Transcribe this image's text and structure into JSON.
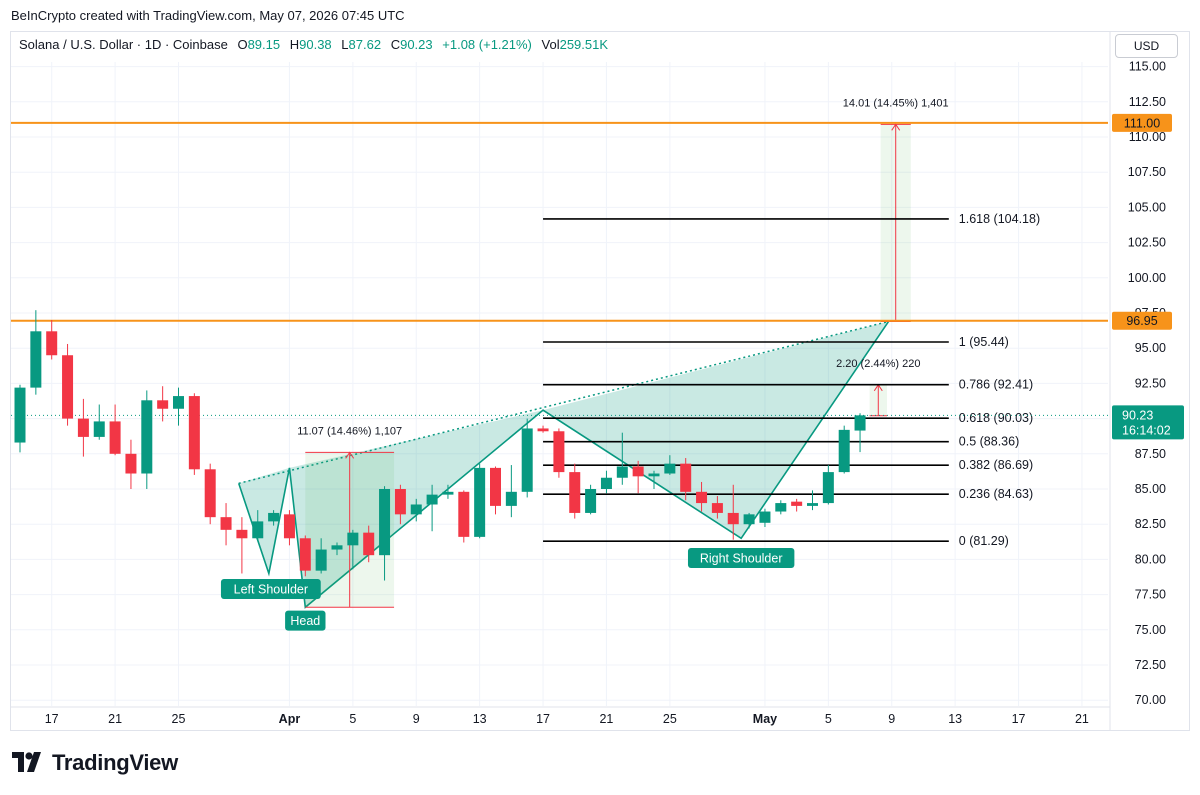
{
  "header": {
    "attribution": "BeInCrypto created with TradingView.com, May 07, 2026 07:45 UTC"
  },
  "legend": {
    "symbol": "Solana / U.S. Dollar · 1D · Coinbase",
    "open_label": "O",
    "open": "89.15",
    "high_label": "H",
    "high": "90.38",
    "low_label": "L",
    "low": "87.62",
    "close_label": "C",
    "close": "90.23",
    "change": "+1.08 (+1.21%)",
    "volume_label": "Vol",
    "volume": "259.51K"
  },
  "currency_button": "USD",
  "logo": {
    "text": "TradingView"
  },
  "colors": {
    "up": "#089981",
    "down": "#f23645",
    "orange": "#f7931a",
    "pattern_fill": "#089981",
    "fib_line": "#000000",
    "grid": "#f0f3fa"
  },
  "chart_data": {
    "type": "candlestick",
    "title": "Solana / U.S. Dollar · 1D · Coinbase",
    "ylim": [
      70,
      116
    ],
    "y_ticks": [
      "115.00",
      "112.50",
      "110.00",
      "107.50",
      "105.00",
      "102.50",
      "100.00",
      "97.50",
      "95.00",
      "92.50",
      "90.00",
      "87.50",
      "85.00",
      "82.50",
      "80.00",
      "77.50",
      "75.00",
      "72.50",
      "70.00"
    ],
    "y_tick_values": [
      115,
      112.5,
      110,
      107.5,
      105,
      102.5,
      100,
      97.5,
      95,
      92.5,
      90,
      87.5,
      85,
      82.5,
      80,
      77.5,
      75,
      72.5,
      70
    ],
    "x_ticks": [
      {
        "label": "17",
        "i": 2,
        "bold": false
      },
      {
        "label": "21",
        "i": 6,
        "bold": false
      },
      {
        "label": "25",
        "i": 10,
        "bold": false
      },
      {
        "label": "Apr",
        "i": 17,
        "bold": true
      },
      {
        "label": "5",
        "i": 21,
        "bold": false
      },
      {
        "label": "9",
        "i": 25,
        "bold": false
      },
      {
        "label": "13",
        "i": 29,
        "bold": false
      },
      {
        "label": "17",
        "i": 33,
        "bold": false
      },
      {
        "label": "21",
        "i": 37,
        "bold": false
      },
      {
        "label": "25",
        "i": 41,
        "bold": false
      },
      {
        "label": "May",
        "i": 47,
        "bold": true
      },
      {
        "label": "5",
        "i": 51,
        "bold": false
      },
      {
        "label": "9",
        "i": 55,
        "bold": false
      },
      {
        "label": "13",
        "i": 59,
        "bold": false
      },
      {
        "label": "17",
        "i": 63,
        "bold": false
      },
      {
        "label": "21",
        "i": 67,
        "bold": false
      }
    ],
    "candles": [
      {
        "o": 88.3,
        "h": 92.4,
        "l": 87.6,
        "c": 92.2
      },
      {
        "o": 92.2,
        "h": 97.7,
        "l": 91.7,
        "c": 96.2
      },
      {
        "o": 96.2,
        "h": 97.0,
        "l": 94.2,
        "c": 94.5
      },
      {
        "o": 94.5,
        "h": 95.3,
        "l": 89.5,
        "c": 90.0
      },
      {
        "o": 90.0,
        "h": 91.4,
        "l": 87.3,
        "c": 88.7
      },
      {
        "o": 88.7,
        "h": 91.0,
        "l": 88.5,
        "c": 89.8
      },
      {
        "o": 89.8,
        "h": 91.0,
        "l": 87.4,
        "c": 87.5
      },
      {
        "o": 87.5,
        "h": 88.5,
        "l": 85.0,
        "c": 86.1
      },
      {
        "o": 86.1,
        "h": 92.0,
        "l": 85.0,
        "c": 91.3
      },
      {
        "o": 91.3,
        "h": 92.3,
        "l": 89.8,
        "c": 90.7
      },
      {
        "o": 90.7,
        "h": 92.2,
        "l": 89.5,
        "c": 91.6
      },
      {
        "o": 91.6,
        "h": 91.8,
        "l": 86.0,
        "c": 86.4
      },
      {
        "o": 86.4,
        "h": 86.8,
        "l": 82.5,
        "c": 83.0
      },
      {
        "o": 83.0,
        "h": 84.0,
        "l": 81.0,
        "c": 82.1
      },
      {
        "o": 82.1,
        "h": 83.0,
        "l": 79.0,
        "c": 81.5
      },
      {
        "o": 81.5,
        "h": 83.5,
        "l": 81.3,
        "c": 82.7
      },
      {
        "o": 82.7,
        "h": 83.5,
        "l": 82.4,
        "c": 83.3
      },
      {
        "o": 83.2,
        "h": 83.5,
        "l": 81.0,
        "c": 81.5
      },
      {
        "o": 81.5,
        "h": 81.7,
        "l": 78.8,
        "c": 79.2
      },
      {
        "o": 79.2,
        "h": 81.5,
        "l": 79.0,
        "c": 80.7
      },
      {
        "o": 80.7,
        "h": 81.2,
        "l": 80.3,
        "c": 81.0
      },
      {
        "o": 81.0,
        "h": 82.1,
        "l": 79.3,
        "c": 81.9
      },
      {
        "o": 81.9,
        "h": 82.4,
        "l": 79.8,
        "c": 80.3
      },
      {
        "o": 80.3,
        "h": 85.2,
        "l": 78.5,
        "c": 85.0
      },
      {
        "o": 85.0,
        "h": 85.3,
        "l": 82.5,
        "c": 83.2
      },
      {
        "o": 83.2,
        "h": 84.3,
        "l": 82.7,
        "c": 83.9
      },
      {
        "o": 83.9,
        "h": 85.3,
        "l": 82.0,
        "c": 84.6
      },
      {
        "o": 84.6,
        "h": 85.3,
        "l": 84.3,
        "c": 84.8
      },
      {
        "o": 84.8,
        "h": 84.9,
        "l": 81.2,
        "c": 81.6
      },
      {
        "o": 81.6,
        "h": 86.8,
        "l": 81.5,
        "c": 86.5
      },
      {
        "o": 86.5,
        "h": 86.6,
        "l": 83.2,
        "c": 83.8
      },
      {
        "o": 83.8,
        "h": 86.7,
        "l": 83.0,
        "c": 84.8
      },
      {
        "o": 84.8,
        "h": 90.0,
        "l": 84.4,
        "c": 89.3
      },
      {
        "o": 89.3,
        "h": 89.5,
        "l": 89.0,
        "c": 89.1
      },
      {
        "o": 89.1,
        "h": 89.3,
        "l": 85.8,
        "c": 86.2
      },
      {
        "o": 86.2,
        "h": 86.8,
        "l": 82.9,
        "c": 83.3
      },
      {
        "o": 83.3,
        "h": 85.3,
        "l": 83.2,
        "c": 85.0
      },
      {
        "o": 85.0,
        "h": 86.3,
        "l": 84.7,
        "c": 85.8
      },
      {
        "o": 85.8,
        "h": 89.0,
        "l": 85.3,
        "c": 86.6
      },
      {
        "o": 86.6,
        "h": 87.0,
        "l": 84.7,
        "c": 85.9
      },
      {
        "o": 85.9,
        "h": 86.3,
        "l": 85.0,
        "c": 86.1
      },
      {
        "o": 86.1,
        "h": 87.4,
        "l": 86.0,
        "c": 86.8
      },
      {
        "o": 86.8,
        "h": 87.2,
        "l": 84.2,
        "c": 84.8
      },
      {
        "o": 84.8,
        "h": 85.5,
        "l": 83.4,
        "c": 84.0
      },
      {
        "o": 84.0,
        "h": 84.5,
        "l": 82.9,
        "c": 83.3
      },
      {
        "o": 83.3,
        "h": 85.3,
        "l": 81.4,
        "c": 82.5
      },
      {
        "o": 82.5,
        "h": 83.3,
        "l": 82.2,
        "c": 83.2
      },
      {
        "o": 82.6,
        "h": 83.6,
        "l": 82.3,
        "c": 83.4
      },
      {
        "o": 83.4,
        "h": 84.2,
        "l": 83.2,
        "c": 84.0
      },
      {
        "o": 84.1,
        "h": 84.3,
        "l": 83.4,
        "c": 83.8
      },
      {
        "o": 83.8,
        "h": 84.9,
        "l": 83.5,
        "c": 84.0
      },
      {
        "o": 84.0,
        "h": 86.7,
        "l": 83.9,
        "c": 86.2
      },
      {
        "o": 86.2,
        "h": 89.5,
        "l": 86.1,
        "c": 89.2
      },
      {
        "o": 89.15,
        "h": 90.38,
        "l": 87.62,
        "c": 90.23
      }
    ],
    "price_lines": [
      {
        "name": "upper-resistance",
        "value": 111.0,
        "label": "111.00"
      },
      {
        "name": "neckline-resistance",
        "value": 96.95,
        "label": "96.95"
      }
    ],
    "current_price": {
      "value": 90.23,
      "label": "90.23",
      "countdown": "16:14:02"
    },
    "fib_levels": [
      {
        "value": 104.18,
        "label": "1.618 (104.18)"
      },
      {
        "value": 95.44,
        "label": "1 (95.44)"
      },
      {
        "value": 92.41,
        "label": "0.786 (92.41)"
      },
      {
        "value": 90.03,
        "label": "0.618 (90.03)"
      },
      {
        "value": 88.36,
        "label": "0.5 (88.36)"
      },
      {
        "value": 86.69,
        "label": "0.382 (86.69)"
      },
      {
        "value": 84.63,
        "label": "0.236 (84.63)"
      },
      {
        "value": 81.29,
        "label": "0 (81.29)"
      }
    ],
    "pattern_points": [
      {
        "i": 13.8,
        "v": 85.4
      },
      {
        "i": 15.7,
        "v": 79.0
      },
      {
        "i": 17.0,
        "v": 86.5
      },
      {
        "i": 18.0,
        "v": 76.6
      },
      {
        "i": 33.0,
        "v": 90.6
      },
      {
        "i": 45.5,
        "v": 81.5
      },
      {
        "i": 54.8,
        "v": 96.9
      }
    ],
    "pattern_labels": [
      "Left Shoulder",
      "Head",
      "Right Shoulder"
    ],
    "measures": [
      {
        "label": "11.07 (14.46%) 1,107",
        "i0": 18.0,
        "i1": 23.6,
        "from": 76.6,
        "to": 87.6
      },
      {
        "label": "14.01 (14.45%) 1,401",
        "i0": 54.3,
        "i1": 56.2,
        "from": 96.9,
        "to": 110.9
      },
      {
        "label": "2.20 (2.44%) 220",
        "i0": 53.6,
        "i1": 54.7,
        "from": 90.2,
        "to": 92.4
      }
    ]
  }
}
